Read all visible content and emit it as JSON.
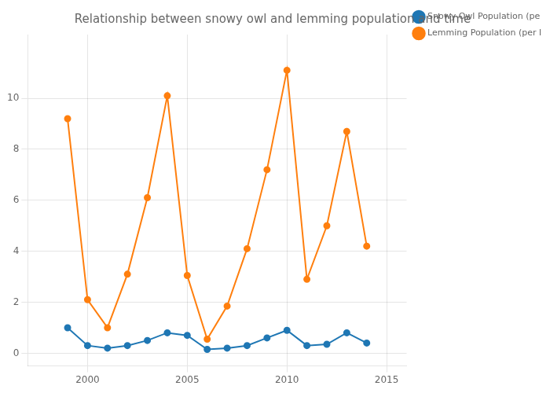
{
  "chart_data": {
    "type": "line",
    "title": "Relationship between snowy owl and lemming population and time",
    "x": [
      1999,
      2000,
      2001,
      2002,
      2003,
      2004,
      2005,
      2006,
      2007,
      2008,
      2009,
      2010,
      2011,
      2012,
      2013,
      2014
    ],
    "series": [
      {
        "name": "Snowy Owl Population (per ha)",
        "color": "#1f77b4",
        "marker": "circle",
        "values": [
          1.0,
          0.3,
          0.2,
          0.3,
          0.5,
          0.8,
          0.7,
          0.15,
          0.2,
          0.3,
          0.6,
          0.9,
          0.3,
          0.35,
          0.8,
          0.4
        ]
      },
      {
        "name": "Lemming Population (per ha)",
        "color": "#ff7f0e",
        "marker": "circle",
        "values": [
          9.2,
          2.1,
          1.0,
          3.1,
          6.1,
          10.1,
          3.05,
          0.55,
          1.85,
          4.1,
          7.2,
          11.1,
          2.9,
          5.0,
          8.7,
          4.2
        ]
      }
    ],
    "xlim": [
      1997,
      2016
    ],
    "xticks": [
      2000,
      2005,
      2010,
      2015
    ],
    "ylim": [
      -0.5,
      12.5
    ],
    "yticks": [
      0,
      2,
      4,
      6,
      8,
      10
    ],
    "grid": true,
    "legend": "right"
  }
}
